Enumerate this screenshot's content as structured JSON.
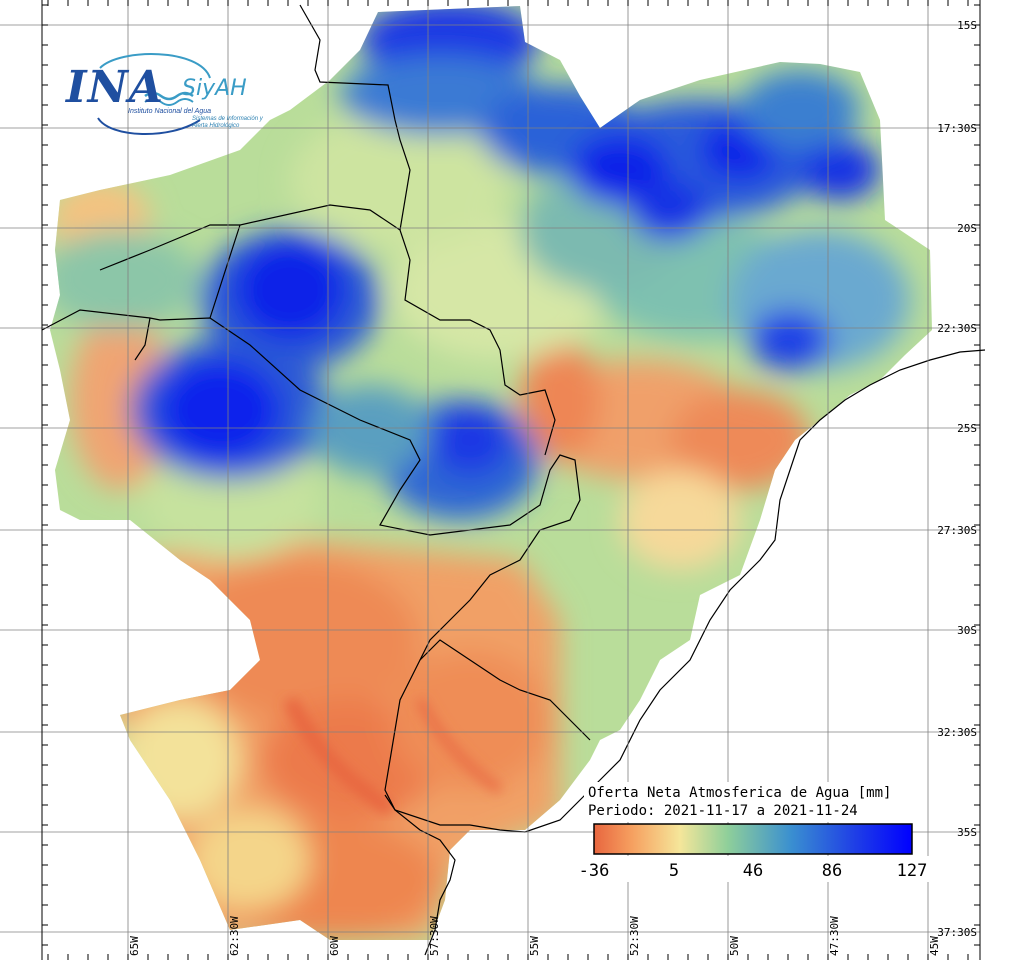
{
  "logo": {
    "acronym": "INA",
    "system": "SiyAH",
    "institute": "Instituto Nacional del Agua",
    "system_full": "Sistemas de Información y Alerta Hidrológico"
  },
  "legend": {
    "title": "Oferta Neta Atmosferica de Agua [mm]",
    "period": "Periodo: 2021-11-17 a 2021-11-24",
    "ticks": [
      "-36",
      "5",
      "46",
      "86",
      "127"
    ],
    "colors": [
      "#e8663f",
      "#f6a060",
      "#f5e69a",
      "#8fcf9a",
      "#3a8fd0",
      "#1f3fe6",
      "#0000ff"
    ]
  },
  "grid": {
    "lat_labels": [
      "15S",
      "17:30S",
      "20S",
      "22:30S",
      "25S",
      "27:30S",
      "30S",
      "32:30S",
      "35S",
      "37:30S"
    ],
    "lon_labels": [
      "65W",
      "62:30W",
      "60W",
      "57:30W",
      "55W",
      "52:30W",
      "50W",
      "47:30W",
      "45W"
    ]
  },
  "colors": {
    "orange": "#ec7a4c",
    "light_orange": "#f4b06e",
    "yellow": "#f3e59a",
    "green": "#a6d69a",
    "teal": "#5fb3b0",
    "blue": "#3573d6",
    "deep_blue": "#0b22e8",
    "border": "#000000",
    "grid": "#808080"
  }
}
